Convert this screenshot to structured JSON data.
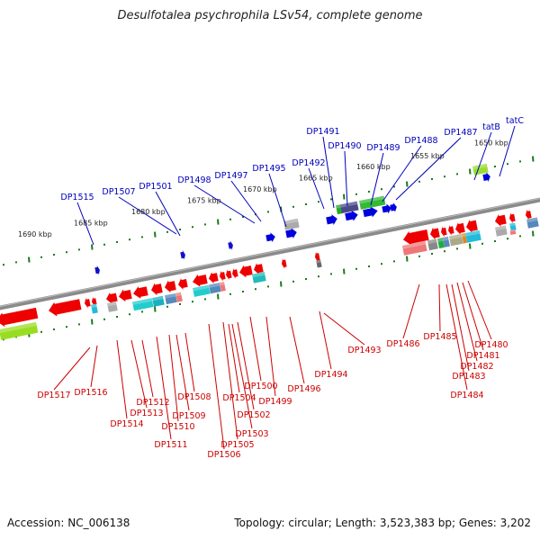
{
  "title": "Desulfotalea psychrophila LSv54, complete genome",
  "footer": {
    "accession": "Accession: NC_006138",
    "summary": "Topology: circular; Length: 3,523,383 bp; Genes: 3,202"
  },
  "colors": {
    "top_label": "#0000bb",
    "bottom_label": "#cc0000",
    "backbone": "#8a8a8a"
  },
  "ticks": [
    {
      "label": "1650 kbp"
    },
    {
      "label": "1655 kbp"
    },
    {
      "label": "1660 kbp"
    },
    {
      "label": "1665 kbp"
    },
    {
      "label": "1670 kbp"
    },
    {
      "label": "1675 kbp"
    },
    {
      "label": "1680 kbp"
    },
    {
      "label": "1685 kbp"
    },
    {
      "label": "1690 kbp"
    }
  ],
  "top_genes": [
    {
      "name": "tatC"
    },
    {
      "name": "tatB"
    },
    {
      "name": "DP1487"
    },
    {
      "name": "DP1488"
    },
    {
      "name": "DP1489"
    },
    {
      "name": "DP1490"
    },
    {
      "name": "DP1491"
    },
    {
      "name": "DP1492"
    },
    {
      "name": "DP1495"
    },
    {
      "name": "DP1497"
    },
    {
      "name": "DP1498"
    },
    {
      "name": "DP1501"
    },
    {
      "name": "DP1507"
    },
    {
      "name": "DP1515"
    }
  ],
  "bottom_genes": [
    {
      "name": "DP1480"
    },
    {
      "name": "DP1481"
    },
    {
      "name": "DP1482"
    },
    {
      "name": "DP1483"
    },
    {
      "name": "DP1484"
    },
    {
      "name": "DP1485"
    },
    {
      "name": "DP1486"
    },
    {
      "name": "DP1493"
    },
    {
      "name": "DP1494"
    },
    {
      "name": "DP1496"
    },
    {
      "name": "DP1499"
    },
    {
      "name": "DP1500"
    },
    {
      "name": "DP1502"
    },
    {
      "name": "DP1503"
    },
    {
      "name": "DP1504"
    },
    {
      "name": "DP1505"
    },
    {
      "name": "DP1506"
    },
    {
      "name": "DP1508"
    },
    {
      "name": "DP1509"
    },
    {
      "name": "DP1510"
    },
    {
      "name": "DP1511"
    },
    {
      "name": "DP1512"
    },
    {
      "name": "DP1513"
    },
    {
      "name": "DP1514"
    },
    {
      "name": "DP1516"
    },
    {
      "name": "DP1517"
    }
  ]
}
